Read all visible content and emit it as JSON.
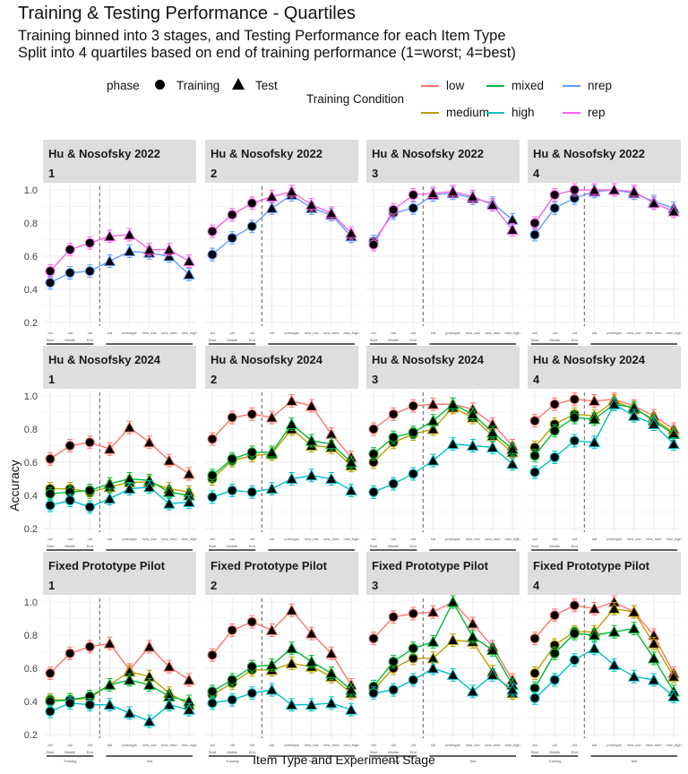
{
  "title": "Training & Testing Performance - Quartiles",
  "subtitle_lines": [
    "Training binned into 3 stages, and Testing Performance for each Item Type",
    "Split into 4 quartiles based on end of training performance (1=worst; 4=best)"
  ],
  "legend": {
    "phase_title": "phase",
    "phase_items": [
      "Training",
      "Test"
    ],
    "condition_title": "Training Condition",
    "conditions": [
      {
        "name": "low",
        "color": "#F8766D"
      },
      {
        "name": "mixed",
        "color": "#00BA38"
      },
      {
        "name": "nrep",
        "color": "#619CFF"
      },
      {
        "name": "medium",
        "color": "#B79F00"
      },
      {
        "name": "high",
        "color": "#00BFC4"
      },
      {
        "name": "rep",
        "color": "#F564E3"
      }
    ]
  },
  "axis_labels": {
    "y": "Accuracy",
    "x": "Item Type and Experiment Stage"
  },
  "chart_data": {
    "type": "line",
    "ylim": [
      0.2,
      1.0
    ],
    "yticks": [
      "0.2",
      "0.4",
      "0.6",
      "0.8",
      "1.0"
    ],
    "x": [
      "old",
      "old",
      "old",
      "old",
      "prototype",
      "new_low",
      "new_med",
      "new_high"
    ],
    "stages": [
      "Start",
      "Middle",
      "End"
    ],
    "phase_groups": [
      "Training",
      "Test"
    ],
    "panels": [
      {
        "exp": "Hu & Nosofsky 2022",
        "quartile": "1",
        "series": [
          {
            "name": "nrep",
            "values": [
              0.44,
              0.5,
              0.51,
              0.57,
              0.63,
              0.62,
              0.6,
              0.49
            ]
          },
          {
            "name": "rep",
            "values": [
              0.51,
              0.64,
              0.68,
              0.72,
              0.73,
              0.64,
              0.64,
              0.57
            ]
          }
        ]
      },
      {
        "exp": "Hu & Nosofsky 2022",
        "quartile": "2",
        "series": [
          {
            "name": "nrep",
            "values": [
              0.61,
              0.71,
              0.78,
              0.89,
              0.97,
              0.89,
              0.85,
              0.72
            ]
          },
          {
            "name": "rep",
            "values": [
              0.75,
              0.85,
              0.92,
              0.96,
              0.99,
              0.91,
              0.86,
              0.74
            ]
          }
        ]
      },
      {
        "exp": "Hu & Nosofsky 2022",
        "quartile": "3",
        "series": [
          {
            "name": "nrep",
            "values": [
              0.69,
              0.86,
              0.89,
              0.97,
              0.98,
              0.95,
              0.92,
              0.82
            ]
          },
          {
            "name": "rep",
            "values": [
              0.67,
              0.88,
              0.97,
              0.98,
              0.99,
              0.96,
              0.91,
              0.76
            ]
          }
        ]
      },
      {
        "exp": "Hu & Nosofsky 2022",
        "quartile": "4",
        "series": [
          {
            "name": "nrep",
            "values": [
              0.73,
              0.89,
              0.95,
              0.99,
              1.0,
              0.98,
              0.93,
              0.89
            ]
          },
          {
            "name": "rep",
            "values": [
              0.8,
              0.97,
              1.0,
              1.0,
              1.0,
              0.99,
              0.92,
              0.87
            ]
          }
        ]
      },
      {
        "exp": "Hu & Nosofsky 2024",
        "quartile": "1",
        "series": [
          {
            "name": "low",
            "values": [
              0.62,
              0.7,
              0.72,
              0.68,
              0.81,
              0.72,
              0.61,
              0.53
            ]
          },
          {
            "name": "medium",
            "values": [
              0.44,
              0.44,
              0.42,
              0.45,
              0.48,
              0.48,
              0.44,
              0.42
            ]
          },
          {
            "name": "mixed",
            "values": [
              0.41,
              0.42,
              0.43,
              0.47,
              0.5,
              0.49,
              0.42,
              0.4
            ]
          },
          {
            "name": "high",
            "values": [
              0.34,
              0.37,
              0.33,
              0.38,
              0.44,
              0.45,
              0.35,
              0.36
            ]
          }
        ]
      },
      {
        "exp": "Hu & Nosofsky 2024",
        "quartile": "2",
        "series": [
          {
            "name": "low",
            "values": [
              0.74,
              0.87,
              0.89,
              0.87,
              0.97,
              0.94,
              0.77,
              0.63
            ]
          },
          {
            "name": "medium",
            "values": [
              0.5,
              0.61,
              0.64,
              0.65,
              0.8,
              0.7,
              0.69,
              0.58
            ]
          },
          {
            "name": "mixed",
            "values": [
              0.52,
              0.62,
              0.66,
              0.66,
              0.83,
              0.73,
              0.71,
              0.6
            ]
          },
          {
            "name": "high",
            "values": [
              0.39,
              0.43,
              0.42,
              0.44,
              0.5,
              0.52,
              0.5,
              0.43
            ]
          }
        ]
      },
      {
        "exp": "Hu & Nosofsky 2024",
        "quartile": "3",
        "series": [
          {
            "name": "low",
            "values": [
              0.8,
              0.89,
              0.94,
              0.95,
              0.95,
              0.92,
              0.83,
              0.7
            ]
          },
          {
            "name": "medium",
            "values": [
              0.6,
              0.72,
              0.77,
              0.8,
              0.93,
              0.87,
              0.76,
              0.66
            ]
          },
          {
            "name": "mixed",
            "values": [
              0.65,
              0.75,
              0.78,
              0.85,
              0.95,
              0.89,
              0.78,
              0.68
            ]
          },
          {
            "name": "high",
            "values": [
              0.42,
              0.47,
              0.53,
              0.61,
              0.71,
              0.7,
              0.69,
              0.59
            ]
          }
        ]
      },
      {
        "exp": "Hu & Nosofsky 2024",
        "quartile": "4",
        "series": [
          {
            "name": "low",
            "values": [
              0.85,
              0.95,
              0.98,
              0.97,
              0.98,
              0.94,
              0.88,
              0.8
            ]
          },
          {
            "name": "medium",
            "values": [
              0.69,
              0.83,
              0.89,
              0.88,
              0.97,
              0.92,
              0.86,
              0.78
            ]
          },
          {
            "name": "mixed",
            "values": [
              0.64,
              0.79,
              0.87,
              0.86,
              0.95,
              0.93,
              0.85,
              0.77
            ]
          },
          {
            "name": "high",
            "values": [
              0.54,
              0.63,
              0.73,
              0.72,
              0.95,
              0.88,
              0.83,
              0.71
            ]
          }
        ]
      },
      {
        "exp": "Fixed Prototype Pilot",
        "quartile": "1",
        "series": [
          {
            "name": "low",
            "values": [
              0.57,
              0.69,
              0.73,
              0.75,
              0.59,
              0.73,
              0.61,
              0.53
            ]
          },
          {
            "name": "medium",
            "values": [
              0.41,
              0.41,
              0.42,
              0.5,
              0.58,
              0.55,
              0.45,
              0.38
            ]
          },
          {
            "name": "mixed",
            "values": [
              0.4,
              0.41,
              0.43,
              0.5,
              0.53,
              0.5,
              0.43,
              0.4
            ]
          },
          {
            "name": "high",
            "values": [
              0.34,
              0.39,
              0.38,
              0.38,
              0.33,
              0.28,
              0.38,
              0.35
            ]
          }
        ]
      },
      {
        "exp": "Fixed Prototype Pilot",
        "quartile": "2",
        "series": [
          {
            "name": "low",
            "values": [
              0.68,
              0.83,
              0.88,
              0.83,
              0.95,
              0.81,
              0.69,
              0.5
            ]
          },
          {
            "name": "medium",
            "values": [
              0.44,
              0.51,
              0.59,
              0.59,
              0.63,
              0.61,
              0.55,
              0.45
            ]
          },
          {
            "name": "mixed",
            "values": [
              0.46,
              0.53,
              0.61,
              0.62,
              0.72,
              0.64,
              0.57,
              0.47
            ]
          },
          {
            "name": "high",
            "values": [
              0.39,
              0.41,
              0.45,
              0.47,
              0.38,
              0.38,
              0.39,
              0.35
            ]
          }
        ]
      },
      {
        "exp": "Fixed Prototype Pilot",
        "quartile": "3",
        "series": [
          {
            "name": "low",
            "values": [
              0.78,
              0.91,
              0.93,
              0.94,
              1.0,
              0.87,
              0.73,
              0.53
            ]
          },
          {
            "name": "medium",
            "values": [
              0.47,
              0.6,
              0.66,
              0.66,
              0.77,
              0.76,
              0.58,
              0.45
            ]
          },
          {
            "name": "mixed",
            "values": [
              0.49,
              0.64,
              0.72,
              0.76,
              1.0,
              0.79,
              0.71,
              0.5
            ]
          },
          {
            "name": "high",
            "values": [
              0.45,
              0.47,
              0.53,
              0.6,
              0.56,
              0.46,
              0.56,
              0.47
            ]
          }
        ]
      },
      {
        "exp": "Fixed Prototype Pilot",
        "quartile": "4",
        "series": [
          {
            "name": "low",
            "values": [
              0.78,
              0.92,
              0.98,
              0.96,
              1.0,
              0.94,
              0.8,
              0.57
            ]
          },
          {
            "name": "medium",
            "values": [
              0.57,
              0.74,
              0.82,
              0.82,
              0.96,
              0.94,
              0.75,
              0.55
            ]
          },
          {
            "name": "mixed",
            "values": [
              0.48,
              0.69,
              0.81,
              0.8,
              0.82,
              0.84,
              0.66,
              0.46
            ]
          },
          {
            "name": "high",
            "values": [
              0.42,
              0.53,
              0.65,
              0.72,
              0.62,
              0.55,
              0.53,
              0.43
            ]
          }
        ]
      }
    ]
  }
}
